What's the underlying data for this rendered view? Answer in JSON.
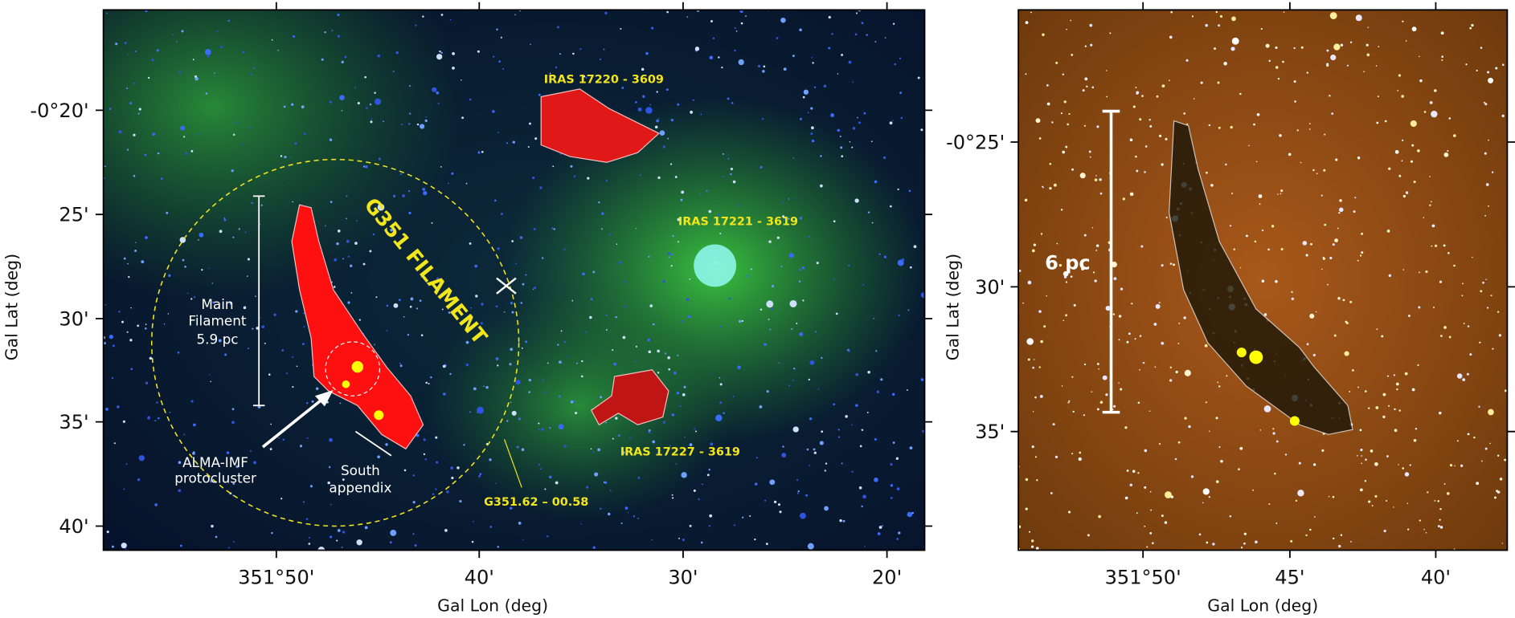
{
  "left_panel": {
    "y_ticks": [
      "-0°20'",
      "25'",
      "30'",
      "35'",
      "40'"
    ],
    "x_ticks": [
      "351°50'",
      "40'",
      "30'",
      "20'"
    ],
    "y_label": "Gal Lat (deg)",
    "x_label": "Gal Lon (deg)",
    "sources": [
      "IRAS 17220 - 3609",
      "IRAS 17221 - 3619",
      "IRAS 17227 - 3619",
      "G351.62 – 00.58"
    ],
    "filament_label": "G351 FILAMENT",
    "main_filament": [
      "Main",
      "Filament",
      "5.9 pc"
    ],
    "protocluster": [
      "ALMA-IMF",
      "protocluster"
    ],
    "south_appendix": [
      "South",
      "appendix"
    ]
  },
  "right_panel": {
    "y_ticks": [
      "-0°25'",
      "30'",
      "35'"
    ],
    "x_ticks": [
      "351°50'",
      "45'",
      "40'"
    ],
    "y_label": "Gal Lat (deg)",
    "x_label": "Gal Lon (deg)",
    "scale_label": "6 pc"
  }
}
